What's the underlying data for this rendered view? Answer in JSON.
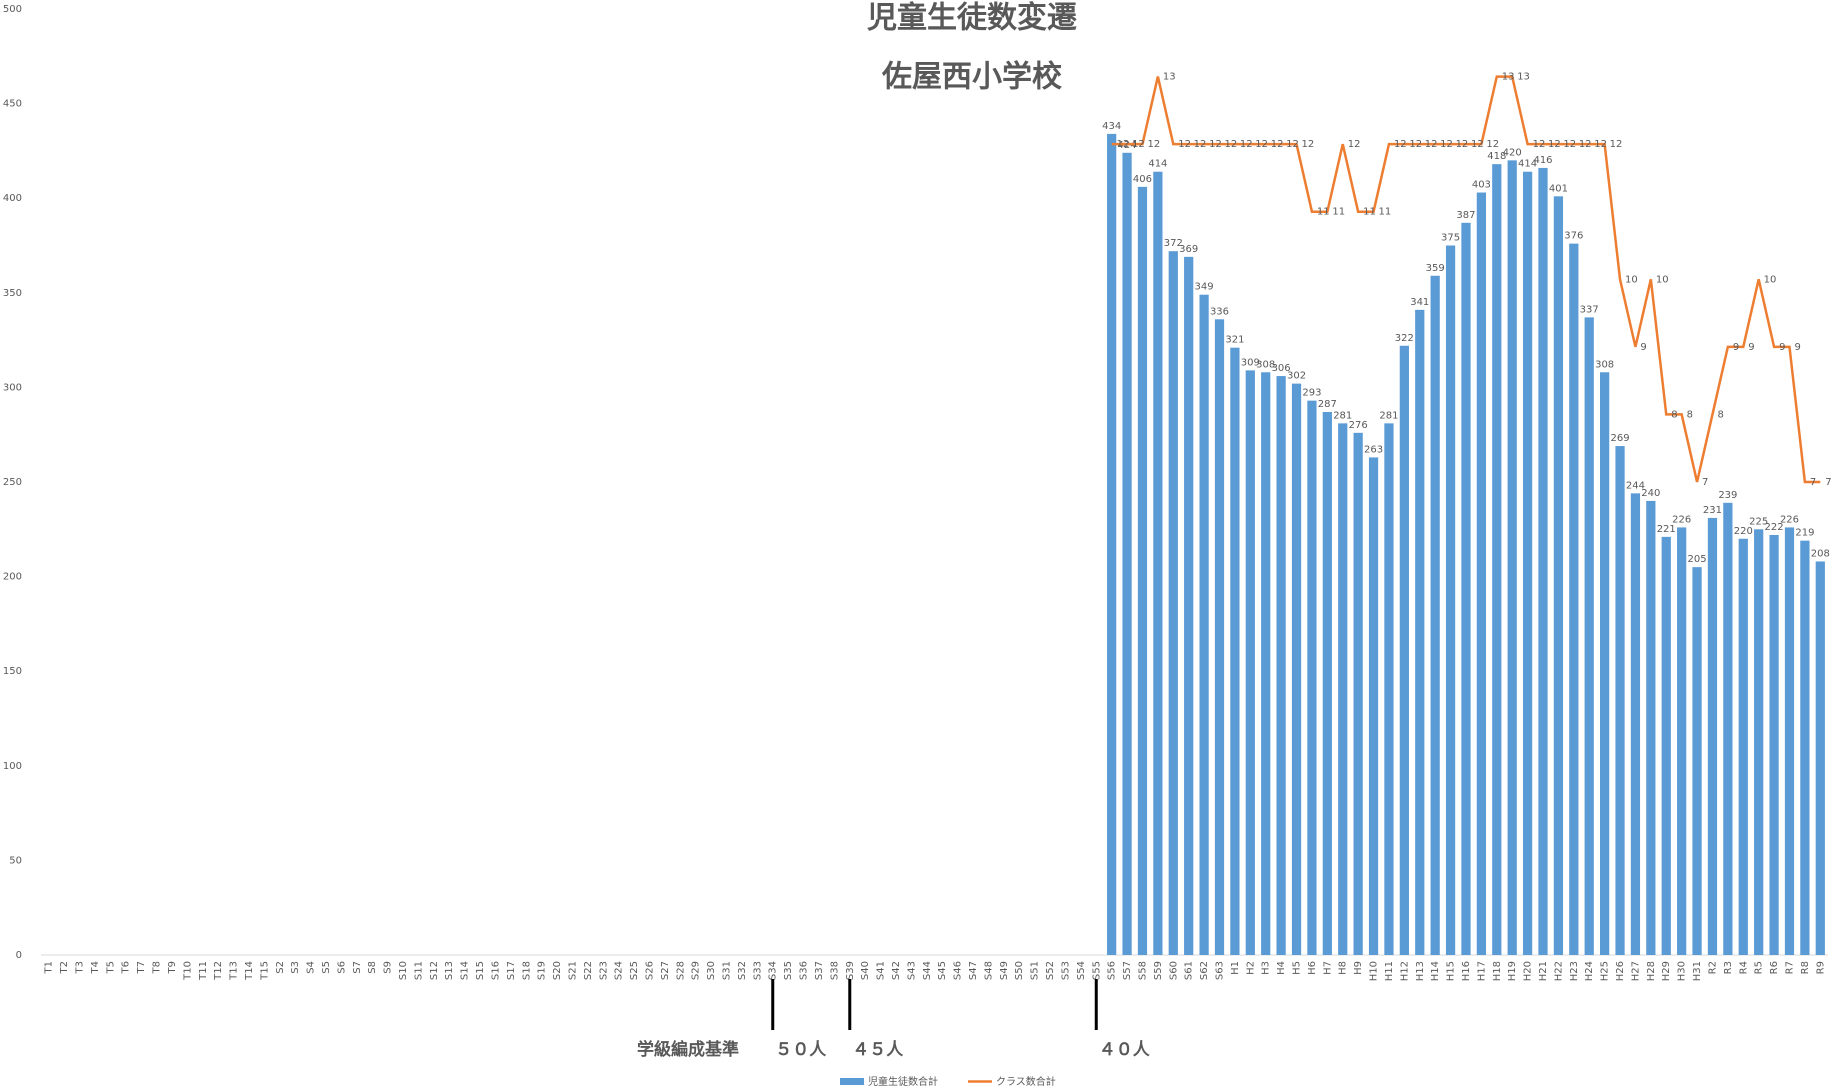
{
  "chart_data": {
    "type": "bar-line",
    "title": "児童生徒数変遷",
    "subtitle": "佐屋西小学校",
    "categories": [
      "T1",
      "T2",
      "T3",
      "T4",
      "T5",
      "T6",
      "T7",
      "T8",
      "T9",
      "T10",
      "T11",
      "T12",
      "T13",
      "T14",
      "T15",
      "S2",
      "S3",
      "S4",
      "S5",
      "S6",
      "S7",
      "S8",
      "S9",
      "S10",
      "S11",
      "S12",
      "S13",
      "S14",
      "S15",
      "S16",
      "S17",
      "S18",
      "S19",
      "S20",
      "S21",
      "S22",
      "S23",
      "S24",
      "S25",
      "S26",
      "S27",
      "S28",
      "S29",
      "S30",
      "S31",
      "S32",
      "S33",
      "S34",
      "S35",
      "S36",
      "S37",
      "S38",
      "S39",
      "S40",
      "S41",
      "S42",
      "S43",
      "S44",
      "S45",
      "S46",
      "S47",
      "S48",
      "S49",
      "S50",
      "S51",
      "S52",
      "S53",
      "S54",
      "S55",
      "S56",
      "S57",
      "S58",
      "S59",
      "S60",
      "S61",
      "S62",
      "S63",
      "H1",
      "H2",
      "H3",
      "H4",
      "H5",
      "H6",
      "H7",
      "H8",
      "H9",
      "H10",
      "H11",
      "H12",
      "H13",
      "H14",
      "H15",
      "H16",
      "H17",
      "H18",
      "H19",
      "H20",
      "H21",
      "H22",
      "H23",
      "H24",
      "H25",
      "H26",
      "H27",
      "H28",
      "H29",
      "H30",
      "H31",
      "R2",
      "R3",
      "R4",
      "R5",
      "R6",
      "R7",
      "R8",
      "R9"
    ],
    "series": [
      {
        "name": "児童生徒数合計",
        "type": "bar",
        "color": "#5b9bd5",
        "values": [
          null,
          null,
          null,
          null,
          null,
          null,
          null,
          null,
          null,
          null,
          null,
          null,
          null,
          null,
          null,
          null,
          null,
          null,
          null,
          null,
          null,
          null,
          null,
          null,
          null,
          null,
          null,
          null,
          null,
          null,
          null,
          null,
          null,
          null,
          null,
          null,
          null,
          null,
          null,
          null,
          null,
          null,
          null,
          null,
          null,
          null,
          null,
          null,
          null,
          null,
          null,
          null,
          null,
          null,
          null,
          null,
          null,
          null,
          null,
          null,
          null,
          null,
          null,
          null,
          null,
          null,
          null,
          null,
          null,
          434,
          424,
          406,
          414,
          372,
          369,
          349,
          336,
          321,
          309,
          308,
          306,
          302,
          293,
          287,
          281,
          276,
          263,
          281,
          322,
          341,
          359,
          375,
          387,
          403,
          418,
          420,
          414,
          416,
          401,
          376,
          337,
          308,
          269,
          244,
          240,
          221,
          226,
          205,
          231,
          239,
          220,
          225,
          222,
          226,
          219,
          208
        ]
      },
      {
        "name": "クラス数合計",
        "type": "line",
        "axis": "y2",
        "color": "#ed7d31",
        "values": [
          null,
          null,
          null,
          null,
          null,
          null,
          null,
          null,
          null,
          null,
          null,
          null,
          null,
          null,
          null,
          null,
          null,
          null,
          null,
          null,
          null,
          null,
          null,
          null,
          null,
          null,
          null,
          null,
          null,
          null,
          null,
          null,
          null,
          null,
          null,
          null,
          null,
          null,
          null,
          null,
          null,
          null,
          null,
          null,
          null,
          null,
          null,
          null,
          null,
          null,
          null,
          null,
          null,
          null,
          null,
          null,
          null,
          null,
          null,
          null,
          null,
          null,
          null,
          null,
          null,
          null,
          null,
          null,
          null,
          12,
          12,
          12,
          13,
          12,
          12,
          12,
          12,
          12,
          12,
          12,
          12,
          12,
          11,
          11,
          12,
          11,
          11,
          12,
          12,
          12,
          12,
          12,
          12,
          12,
          13,
          13,
          12,
          12,
          12,
          12,
          12,
          12,
          10,
          9,
          10,
          8,
          8,
          7,
          8,
          9,
          9,
          10,
          9,
          9,
          7,
          7
        ]
      }
    ],
    "ylim": [
      0,
      500
    ],
    "yticks": [
      0,
      50,
      100,
      150,
      200,
      250,
      300,
      350,
      400,
      450,
      500
    ],
    "y2lim": [
      0,
      14
    ],
    "annotations": [
      "学級編成基準",
      "５０人",
      "４５人",
      "４０人"
    ],
    "legend": "bottom",
    "grid": false
  }
}
